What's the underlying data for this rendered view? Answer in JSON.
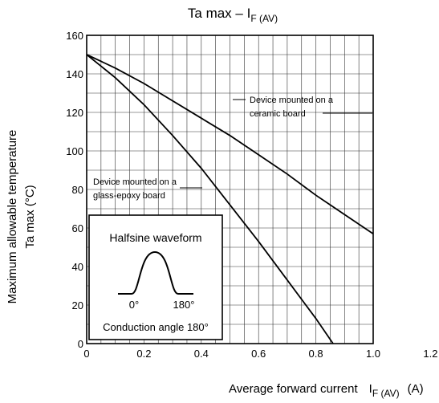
{
  "chart_data": {
    "type": "line",
    "title": "Ta max – I",
    "title_subscript": "F (AV)",
    "xlabel": "Average forward current",
    "xlabel_symbol": "I",
    "xlabel_subscript": "F (AV)",
    "xlabel_unit": "(A)",
    "ylabel_line1": "Maximum allowable temperature",
    "ylabel_line2": "Ta max    (°C)",
    "xlim": [
      0,
      1.2
    ],
    "ylim": [
      0,
      160
    ],
    "x_ticks": [
      0,
      0.2,
      0.4,
      0.6,
      0.8,
      1.0,
      1.2
    ],
    "x_tick_labels": [
      "0",
      "0.2",
      "0.4",
      "0.6",
      "0.8",
      "1.0",
      "1.2"
    ],
    "y_ticks": [
      0,
      20,
      40,
      60,
      80,
      100,
      120,
      140,
      160
    ],
    "y_tick_labels": [
      "0",
      "20",
      "40",
      "60",
      "80",
      "100",
      "120",
      "140",
      "160"
    ],
    "grid": true,
    "series": [
      {
        "name": "Device mounted on a ceramic board",
        "label_line1": "Device mounted on a",
        "label_line2": "ceramic board",
        "x": [
          0,
          0.1,
          0.2,
          0.3,
          0.4,
          0.5,
          0.6,
          0.7,
          0.8,
          0.9,
          1.0
        ],
        "y": [
          150,
          143,
          135,
          126,
          117,
          108,
          98,
          88,
          77,
          67,
          57
        ]
      },
      {
        "name": "Device mounted on a glass-epoxy board",
        "label_line1": "Device mounted on a",
        "label_line2": "glass-epoxy board",
        "x": [
          0,
          0.1,
          0.2,
          0.3,
          0.4,
          0.5,
          0.6,
          0.7,
          0.8,
          0.86
        ],
        "y": [
          150,
          138,
          124,
          108,
          91,
          72,
          53,
          33,
          13,
          0
        ]
      }
    ],
    "inset": {
      "title": "Halfsine waveform",
      "label_start": "0°",
      "label_end": "180°",
      "caption": "Conduction angle 180°"
    }
  }
}
